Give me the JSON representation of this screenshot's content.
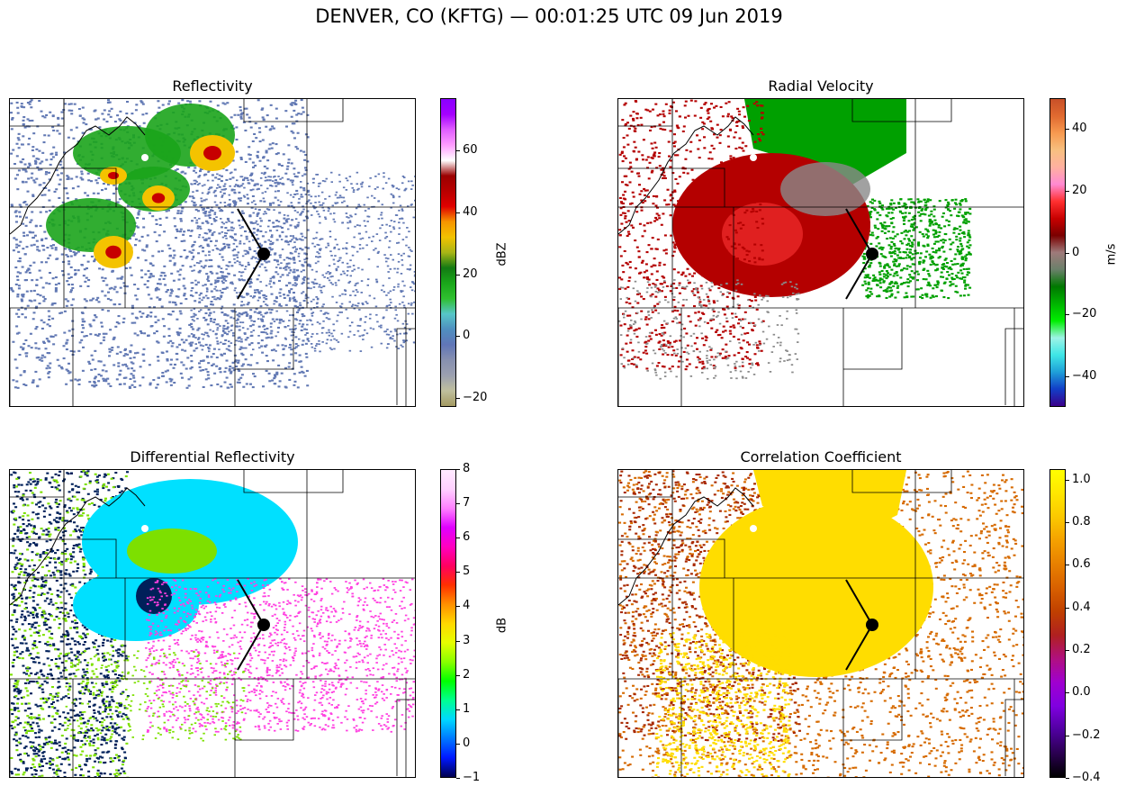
{
  "figure": {
    "title": "DENVER, CO (KFTG) — 00:01:25 UTC 09 Jun 2019"
  },
  "chart_data": [
    {
      "type": "heatmap",
      "title": "Reflectivity",
      "colorbar": {
        "label": "dBZ",
        "range": [
          -23,
          77
        ],
        "ticks": [
          -20,
          0,
          20,
          40,
          60
        ],
        "tick_labels": [
          "−20",
          "0",
          "20",
          "40",
          "60"
        ],
        "colors": [
          "#a49a62",
          "#bfbf9e",
          "#9ba0b0",
          "#8790b0",
          "#6076b7",
          "#4f8fc0",
          "#57c6c8",
          "#2fbf2f",
          "#1aa71a",
          "#137a13",
          "#a8b516",
          "#f2c200",
          "#f79500",
          "#e00000",
          "#b80000",
          "#9a0000",
          "#ffffff",
          "#ff9cff",
          "#e05eff",
          "#a400ff",
          "#8a00ff"
        ]
      },
      "colors": {
        "light": "#6279b4",
        "mid": "#1ba41b",
        "heavy": "#f4c300",
        "extreme": "#c70000"
      }
    },
    {
      "type": "heatmap",
      "title": "Radial Velocity",
      "colorbar": {
        "label": "m/s",
        "range": [
          -50,
          50
        ],
        "ticks": [
          -40,
          -20,
          0,
          20,
          40
        ],
        "tick_labels": [
          "−40",
          "−20",
          "0",
          "20",
          "40"
        ],
        "colors": [
          "#3a008a",
          "#123ec7",
          "#1fa0d8",
          "#3fe6e6",
          "#9ef3e6",
          "#00ee00",
          "#00b400",
          "#007800",
          "#6a806a",
          "#9e7a7a",
          "#7a0000",
          "#c80000",
          "#ff3030",
          "#ff8ad2",
          "#ffb0a0",
          "#f7c080",
          "#f79a50",
          "#e06a30",
          "#c85028"
        ]
      },
      "colors": {
        "inbound": "#00a000",
        "outbound": "#b40000",
        "zero": "#8a8a8a"
      }
    },
    {
      "type": "heatmap",
      "title": "Differential Reflectivity",
      "colorbar": {
        "label": "dB",
        "range": [
          -1,
          8
        ],
        "ticks": [
          -1,
          0,
          1,
          2,
          3,
          4,
          5,
          6,
          7,
          8
        ],
        "tick_labels": [
          "−1",
          "0",
          "1",
          "2",
          "3",
          "4",
          "5",
          "6",
          "7",
          "8"
        ],
        "colors": [
          "#000050",
          "#0018ff",
          "#0078ff",
          "#00d8ff",
          "#00ff90",
          "#00ff00",
          "#8aff00",
          "#e6ff00",
          "#ffd800",
          "#ff9000",
          "#ff3000",
          "#ff0060",
          "#ff00c0",
          "#e000ff",
          "#ff80ff",
          "#ffd0ff",
          "#ffeaff"
        ]
      },
      "colors": {
        "low": "#00e0ff",
        "mid": "#7de000",
        "high": "#ff40e0",
        "noise": "#00205a"
      }
    },
    {
      "type": "heatmap",
      "title": "Correlation Coefficient",
      "colorbar": {
        "label": "",
        "range": [
          -0.4,
          1.05
        ],
        "ticks": [
          -0.4,
          -0.2,
          0.0,
          0.2,
          0.4,
          0.6,
          0.8,
          1.0
        ],
        "tick_labels": [
          "−0.4",
          "−0.2",
          "0.0",
          "0.2",
          "0.4",
          "0.6",
          "0.8",
          "1.0"
        ],
        "colors": [
          "#000000",
          "#2a0050",
          "#5000a0",
          "#8000e0",
          "#a000d0",
          "#b01080",
          "#b02020",
          "#c04000",
          "#d86000",
          "#e88000",
          "#f4a000",
          "#fbc800",
          "#ffe600",
          "#ffff00"
        ]
      },
      "colors": {
        "high": "#ffdd00",
        "mid": "#d66a00",
        "low": "#a82800"
      }
    }
  ]
}
